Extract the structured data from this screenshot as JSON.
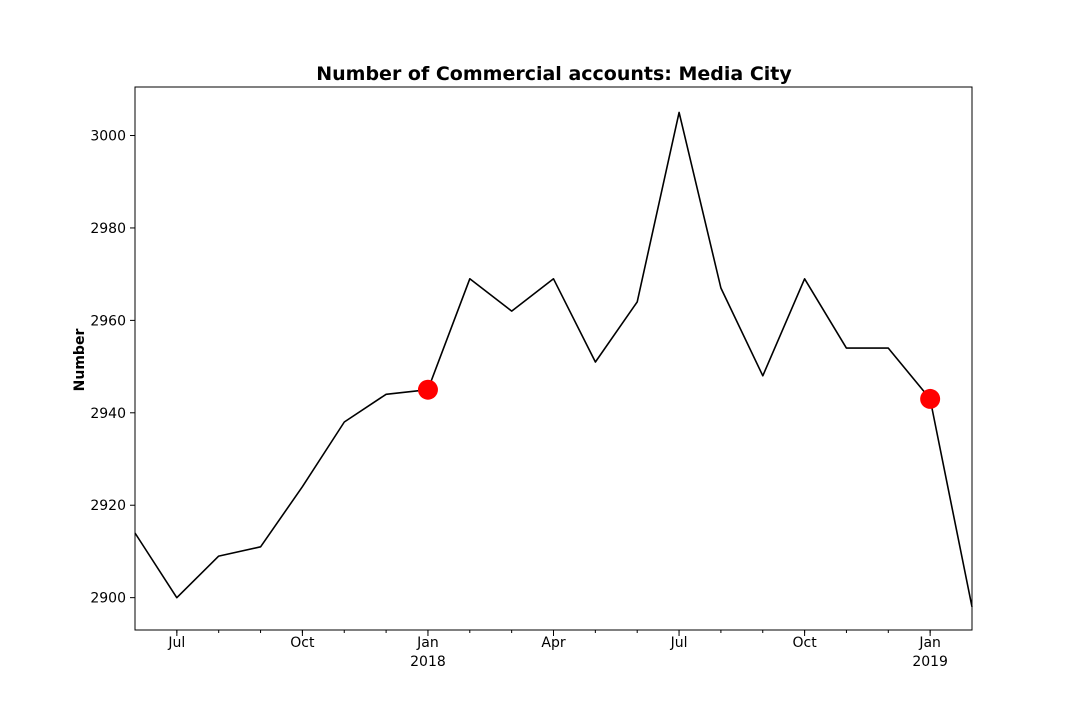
{
  "chart_data": {
    "type": "line",
    "title": "Number of Commercial accounts: Media City",
    "xlabel": "",
    "ylabel": "Number",
    "x": [
      "2017-06",
      "2017-07",
      "2017-08",
      "2017-09",
      "2017-10",
      "2017-11",
      "2017-12",
      "2018-01",
      "2018-02",
      "2018-03",
      "2018-04",
      "2018-05",
      "2018-06",
      "2018-07",
      "2018-08",
      "2018-09",
      "2018-10",
      "2018-11",
      "2018-12",
      "2019-01",
      "2019-02"
    ],
    "series": [
      {
        "values": [
          2914,
          2900,
          2909,
          2911,
          2924,
          2938,
          2944,
          2945,
          2969,
          2962,
          2969,
          2951,
          2964,
          3005,
          2967,
          2948,
          2969,
          2954,
          2954,
          2943,
          2898
        ],
        "color": "#000000"
      }
    ],
    "highlights": [
      {
        "x": "2018-01",
        "y": 2945,
        "color": "#ff0000"
      },
      {
        "x": "2019-01",
        "y": 2943,
        "color": "#ff0000"
      }
    ],
    "xlim": [
      "2017-06",
      "2019-02"
    ],
    "ylim": [
      2893,
      3010.5
    ],
    "yticks": [
      2900,
      2920,
      2940,
      2960,
      2980,
      3000
    ],
    "xticks": [
      {
        "x": "2017-07",
        "label": "Jul"
      },
      {
        "x": "2017-10",
        "label": "Oct"
      },
      {
        "x": "2018-01",
        "label": "Jan",
        "sublabel": "2018"
      },
      {
        "x": "2018-04",
        "label": "Apr"
      },
      {
        "x": "2018-07",
        "label": "Jul"
      },
      {
        "x": "2018-10",
        "label": "Oct"
      },
      {
        "x": "2019-01",
        "label": "Jan",
        "sublabel": "2019"
      }
    ],
    "grid": false,
    "legend": "none"
  }
}
